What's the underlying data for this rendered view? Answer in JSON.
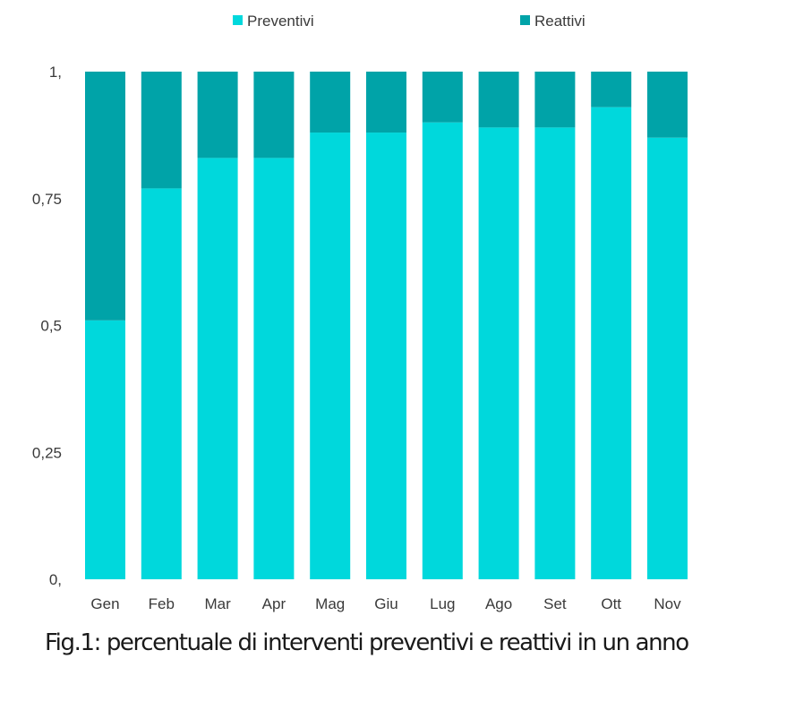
{
  "caption": "Fig.1: percentuale di interventi preventivi e reattivi in un anno",
  "chart_data": {
    "type": "bar",
    "stacked": true,
    "categories": [
      "Gen",
      "Feb",
      "Mar",
      "Apr",
      "Mag",
      "Giu",
      "Lug",
      "Ago",
      "Set",
      "Ott",
      "Nov"
    ],
    "series": [
      {
        "name": "Preventivi",
        "color": "#00d8dc",
        "values": [
          0.51,
          0.77,
          0.83,
          0.83,
          0.88,
          0.88,
          0.9,
          0.89,
          0.89,
          0.93,
          0.87
        ]
      },
      {
        "name": "Reattivi",
        "color": "#00a3a8",
        "values": [
          0.49,
          0.23,
          0.17,
          0.17,
          0.12,
          0.12,
          0.1,
          0.11,
          0.11,
          0.07,
          0.13
        ]
      }
    ],
    "y_ticks": [
      0,
      0.25,
      0.5,
      0.75,
      1
    ],
    "y_tick_labels": [
      "0,",
      "0,25",
      "0,5",
      "0,75",
      "1,"
    ],
    "ylim": [
      0,
      1
    ],
    "grid": false,
    "legend_position": "top"
  }
}
